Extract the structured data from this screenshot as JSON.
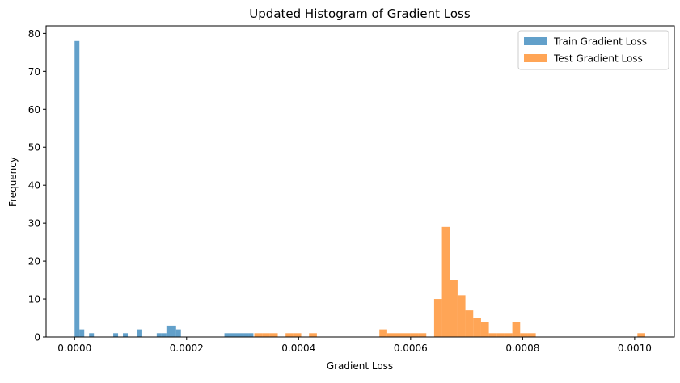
{
  "chart_data": {
    "type": "histogram",
    "title": "Updated Histogram of Gradient Loss",
    "xlabel": "Gradient Loss",
    "ylabel": "Frequency",
    "xlim": [
      -5.09e-05,
      0.0010709
    ],
    "ylim": [
      0,
      82
    ],
    "x_ticks": [
      0.0,
      0.0002,
      0.0004,
      0.0006,
      0.0008,
      0.001
    ],
    "x_tick_labels": [
      "0.0000",
      "0.0002",
      "0.0004",
      "0.0006",
      "0.0008",
      "0.0010"
    ],
    "y_ticks": [
      0,
      10,
      20,
      30,
      40,
      50,
      60,
      70,
      80
    ],
    "y_tick_labels": [
      "0",
      "10",
      "20",
      "30",
      "40",
      "50",
      "60",
      "70",
      "80"
    ],
    "grid": false,
    "legend_position": "top-right",
    "series": [
      {
        "name": "Train Gradient Loss",
        "color": "#1f77b4",
        "alpha": 0.7,
        "bin_start": 0.0,
        "bin_width": 8.63e-06,
        "counts": [
          78,
          2,
          0,
          1,
          0,
          0,
          0,
          0,
          1,
          0,
          1,
          0,
          0,
          2,
          0,
          0,
          0,
          1,
          1,
          3,
          3,
          2,
          0,
          0,
          0,
          0,
          0,
          0,
          0,
          0,
          0,
          1,
          1,
          1,
          1,
          1,
          1,
          0,
          0,
          0,
          0,
          0,
          0,
          0,
          0,
          0,
          0,
          0,
          0,
          0
        ]
      },
      {
        "name": "Test Gradient Loss",
        "color": "#ff7f0e",
        "alpha": 0.7,
        "bin_start": 0.0003209,
        "bin_width": 1.396e-05,
        "counts": [
          1,
          1,
          1,
          0,
          1,
          1,
          0,
          1,
          0,
          0,
          0,
          0,
          0,
          0,
          0,
          0,
          2,
          1,
          1,
          1,
          1,
          1,
          0,
          10,
          29,
          15,
          11,
          7,
          5,
          4,
          1,
          1,
          1,
          4,
          1,
          1,
          0,
          0,
          0,
          0,
          0,
          0,
          0,
          0,
          0,
          0,
          0,
          0,
          0,
          1
        ]
      }
    ]
  }
}
